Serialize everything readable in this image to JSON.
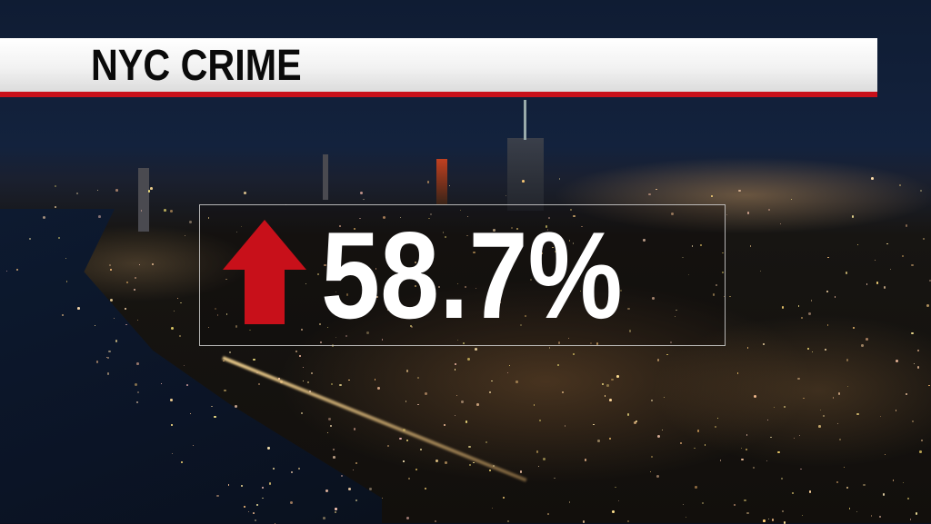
{
  "header": {
    "title": "NYC CRIME"
  },
  "stat": {
    "value": "58.7%",
    "direction": "up",
    "arrow_icon": "arrow-up-icon"
  },
  "colors": {
    "accent_red": "#c8101a",
    "header_bg": "#f2f2f2",
    "stat_text": "#ffffff"
  }
}
